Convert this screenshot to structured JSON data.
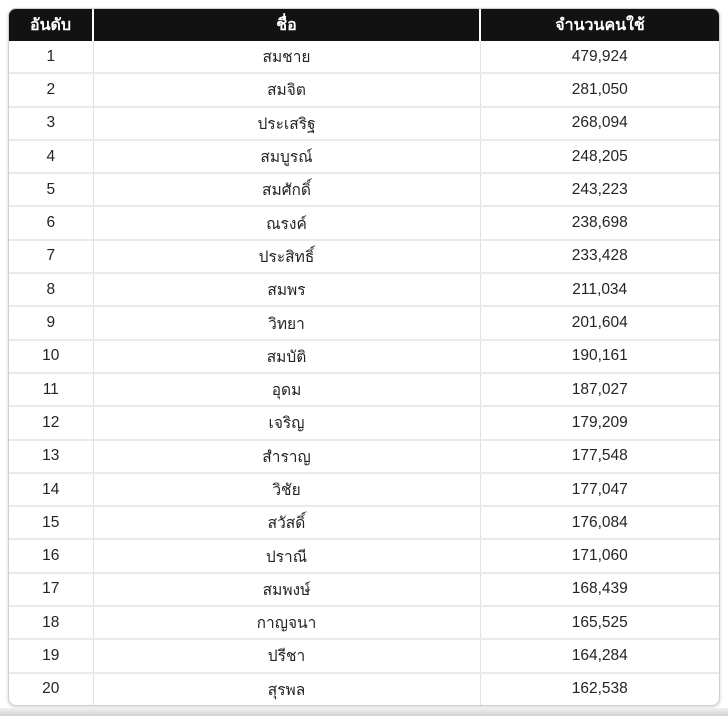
{
  "colors": {
    "header_bg": "#121212",
    "header_text": "#ffffff",
    "row_divider": "#eaeaea",
    "column_divider": "#e2e2e2",
    "body_text": "#242424",
    "outer_border": "#cfcfcf",
    "bottom_band": "#d2d2d2"
  },
  "table": {
    "columns": [
      {
        "id": "rank",
        "label": "อันดับ"
      },
      {
        "id": "name",
        "label": "ชื่อ"
      },
      {
        "id": "count",
        "label": "จำนวนคนใช้"
      }
    ],
    "rows": [
      {
        "rank": "1",
        "name": "สมชาย",
        "count": "479,924"
      },
      {
        "rank": "2",
        "name": "สมจิต",
        "count": "281,050"
      },
      {
        "rank": "3",
        "name": "ประเสริฐ",
        "count": "268,094"
      },
      {
        "rank": "4",
        "name": "สมบูรณ์",
        "count": "248,205"
      },
      {
        "rank": "5",
        "name": "สมศักดิ์",
        "count": "243,223"
      },
      {
        "rank": "6",
        "name": "ณรงค์",
        "count": "238,698"
      },
      {
        "rank": "7",
        "name": "ประสิทธิ์",
        "count": "233,428"
      },
      {
        "rank": "8",
        "name": "สมพร",
        "count": "211,034"
      },
      {
        "rank": "9",
        "name": "วิทยา",
        "count": "201,604"
      },
      {
        "rank": "10",
        "name": "สมบัติ",
        "count": "190,161"
      },
      {
        "rank": "11",
        "name": "อุดม",
        "count": "187,027"
      },
      {
        "rank": "12",
        "name": "เจริญ",
        "count": "179,209"
      },
      {
        "rank": "13",
        "name": "สำราญ",
        "count": "177,548"
      },
      {
        "rank": "14",
        "name": "วิชัย",
        "count": "177,047"
      },
      {
        "rank": "15",
        "name": "สวัสดิ์",
        "count": "176,084"
      },
      {
        "rank": "16",
        "name": "ปราณี",
        "count": "171,060"
      },
      {
        "rank": "17",
        "name": "สมพงษ์",
        "count": "168,439"
      },
      {
        "rank": "18",
        "name": "กาญจนา",
        "count": "165,525"
      },
      {
        "rank": "19",
        "name": "ปรีชา",
        "count": "164,284"
      },
      {
        "rank": "20",
        "name": "สุรพล",
        "count": "162,538"
      }
    ]
  }
}
